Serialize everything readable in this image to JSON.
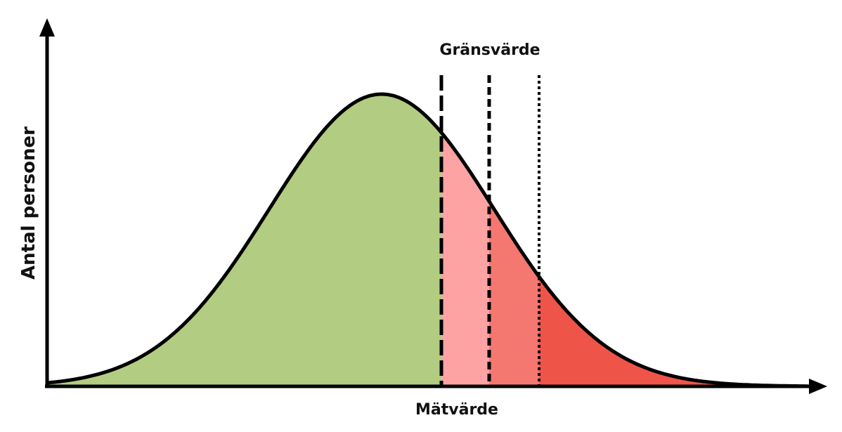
{
  "labels": {
    "threshold": "Gränsvärde",
    "x_axis": "Mätvärde",
    "y_axis": "Antal personer"
  },
  "colors": {
    "normal_region": "#b2cc81",
    "above_first_threshold": "#fda3a3",
    "above_second_threshold": "#f47870",
    "above_third_threshold": "#ef5449",
    "outline": "#000000"
  }
}
